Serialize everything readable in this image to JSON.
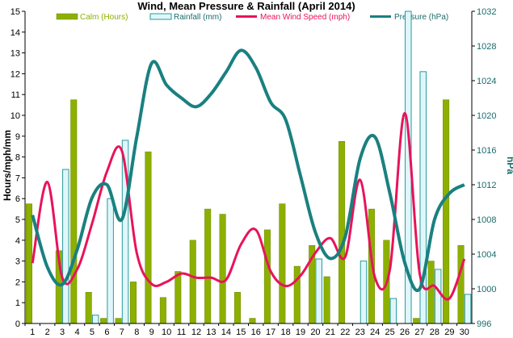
{
  "chart_data": {
    "type": "bar",
    "title": "Wind, Mean Pressure & Rainfall (April 2014)",
    "ylabel_left": "Hours/mph/mm",
    "ylabel_right": "hPa",
    "ylim_left": [
      0,
      15
    ],
    "ylim_right": [
      996,
      1032
    ],
    "yticks_left": [
      "0",
      "1",
      "2",
      "3",
      "4",
      "5",
      "6",
      "7",
      "8",
      "9",
      "10",
      "11",
      "12",
      "13",
      "14",
      "15"
    ],
    "yticks_right": [
      "996",
      "1000",
      "1004",
      "1008",
      "1012",
      "1016",
      "1020",
      "1024",
      "1028",
      "1032"
    ],
    "categories": [
      "1",
      "2",
      "3",
      "4",
      "5",
      "6",
      "7",
      "8",
      "9",
      "10",
      "11",
      "12",
      "13",
      "14",
      "15",
      "16",
      "17",
      "18",
      "19",
      "20",
      "21",
      "22",
      "23",
      "24",
      "25",
      "26",
      "27",
      "28",
      "29",
      "30"
    ],
    "legend_position": "top",
    "grid": false,
    "series": [
      {
        "name": "Calm (Hours)",
        "kind": "bar",
        "axis": "left",
        "color": "#8db000",
        "values": [
          5.75,
          0,
          3.5,
          10.75,
          1.5,
          0.25,
          0.25,
          2,
          8.25,
          1.25,
          2.5,
          4,
          5.5,
          5.25,
          1.5,
          0.25,
          4.5,
          5.75,
          2.75,
          3.75,
          2.25,
          8.75,
          0,
          5.5,
          4,
          0,
          0.25,
          3,
          10.75,
          3.75
        ]
      },
      {
        "name": "Rainfall (mm)",
        "kind": "bar",
        "axis": "left",
        "color": "#dff7fb",
        "stroke": "#2a9a9a",
        "values": [
          0,
          0,
          7.4,
          0,
          0.4,
          6,
          8.8,
          0,
          0,
          0,
          0,
          0,
          0,
          0,
          0,
          0,
          0,
          0,
          0,
          3.1,
          0,
          0,
          3,
          0,
          1.2,
          15,
          12.1,
          2.6,
          0,
          1.4
        ]
      },
      {
        "name": "Mean Wind Speed (mph)",
        "kind": "line",
        "axis": "left",
        "color": "#e8135a",
        "values": [
          2.9,
          6.8,
          2.2,
          2.6,
          4.8,
          7.3,
          8.3,
          3.4,
          1.9,
          2,
          2.4,
          2.2,
          2.2,
          2.1,
          3.8,
          4.5,
          2.5,
          1.8,
          2.3,
          3.4,
          4.1,
          3.2,
          6.9,
          2.2,
          2.6,
          10.1,
          2.4,
          1.8,
          1.2,
          3.1
        ]
      },
      {
        "name": "Pressure (hPa)",
        "kind": "line",
        "axis": "right",
        "color": "#1a8080",
        "values": [
          1008.5,
          1002.5,
          1000.5,
          1004.5,
          1010.5,
          1012,
          1008,
          1017.5,
          1026,
          1023.5,
          1022,
          1021,
          1022.5,
          1025,
          1027.5,
          1025.5,
          1021.5,
          1019.5,
          1013,
          1006.5,
          1003.5,
          1006,
          1015,
          1017.5,
          1011,
          1003,
          1000,
          1008,
          1011,
          1012
        ]
      }
    ]
  }
}
